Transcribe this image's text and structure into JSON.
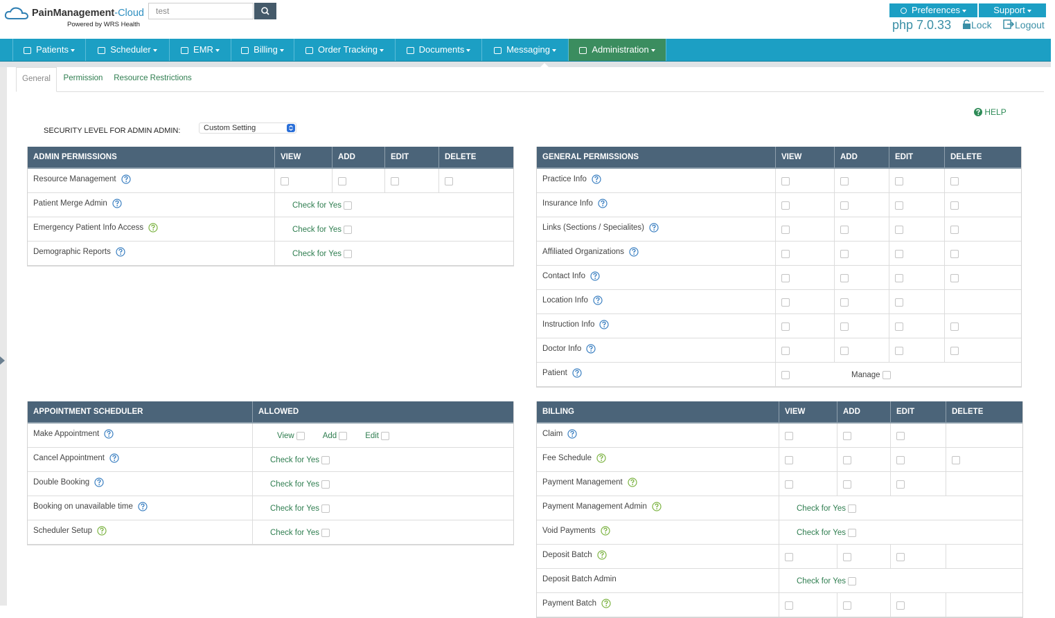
{
  "header": {
    "brand": "PainManagement",
    "brand_suffix": "-Cloud",
    "powered_by": "Powered by WRS Health",
    "search": "test",
    "preferences": "Preferences",
    "support": "Support",
    "php_version": "php 7.0.33",
    "lock": "Lock",
    "logout": "Logout"
  },
  "nav": {
    "items": [
      "Patients",
      "Scheduler",
      "EMR",
      "Billing",
      "Order Tracking",
      "Documents",
      "Messaging",
      "Administration"
    ],
    "active": 7
  },
  "tabs": {
    "items": [
      "General",
      "Permission",
      "Resource Restrictions"
    ],
    "active": 0
  },
  "help": "HELP",
  "security": {
    "label": "SECURITY LEVEL FOR ADMIN ADMIN:",
    "value": "Custom Setting"
  },
  "panels": [
    {
      "headers": [
        "ADMIN PERMISSIONS",
        "VIEW",
        "ADD",
        "EDIT",
        "DELETE"
      ],
      "rows": [
        {
          "label": "Resource Management",
          "help": "blue",
          "boxes": [
            true,
            true,
            true,
            true
          ]
        },
        {
          "label": "Patient Merge Admin",
          "help": "blue",
          "check": "Check for Yes"
        },
        {
          "label": "Emergency Patient Info Access",
          "help": "green",
          "check": "Check for Yes"
        },
        {
          "label": "Demographic Reports",
          "help": "blue",
          "check": "Check for Yes"
        }
      ]
    },
    {
      "headers": [
        "GENERAL PERMISSIONS",
        "VIEW",
        "ADD",
        "EDIT",
        "DELETE"
      ],
      "rows": [
        {
          "label": "Practice Info",
          "help": "blue",
          "boxes": [
            true,
            true,
            true,
            true
          ]
        },
        {
          "label": "Insurance Info",
          "help": "blue",
          "boxes": [
            true,
            true,
            true,
            true
          ]
        },
        {
          "label": "Links (Sections / Specialites)",
          "help": "blue",
          "boxes": [
            true,
            true,
            true,
            true
          ]
        },
        {
          "label": "Affiliated Organizations",
          "help": "blue",
          "boxes": [
            true,
            true,
            true,
            true
          ]
        },
        {
          "label": "Contact Info",
          "help": "blue",
          "boxes": [
            true,
            true,
            true,
            true
          ]
        },
        {
          "label": "Location Info",
          "help": "blue",
          "boxes": [
            true,
            true,
            true,
            false
          ]
        },
        {
          "label": "Instruction Info",
          "help": "blue",
          "boxes": [
            true,
            true,
            true,
            true
          ]
        },
        {
          "label": "Doctor Info",
          "help": "blue",
          "boxes": [
            true,
            true,
            true,
            true
          ]
        },
        {
          "label": "Patient",
          "help": "blue",
          "boxes": [
            true
          ],
          "manage": "Manage"
        }
      ]
    },
    {
      "headers": [
        "APPOINTMENT SCHEDULER",
        "ALLOWED"
      ],
      "rows": [
        {
          "label": "Make Appointment",
          "help": "blue",
          "options": [
            "View",
            "Add",
            "Edit"
          ]
        },
        {
          "label": "Cancel Appointment",
          "help": "blue",
          "check": "Check for Yes"
        },
        {
          "label": "Double Booking",
          "help": "blue",
          "check": "Check for Yes"
        },
        {
          "label": "Booking on unavailable time",
          "help": "blue",
          "check": "Check for Yes"
        },
        {
          "label": "Scheduler Setup",
          "help": "green",
          "check": "Check for Yes"
        }
      ]
    },
    {
      "headers": [
        "BILLING",
        "VIEW",
        "ADD",
        "EDIT",
        "DELETE"
      ],
      "rows": [
        {
          "label": "Claim",
          "help": "blue",
          "boxes": [
            true,
            true,
            true,
            false
          ]
        },
        {
          "label": "Fee Schedule",
          "help": "green",
          "boxes": [
            true,
            true,
            true,
            true
          ]
        },
        {
          "label": "Payment Management",
          "help": "green",
          "boxes": [
            true,
            true,
            true,
            false
          ]
        },
        {
          "label": "Payment Management Admin",
          "help": "green",
          "check": "Check for Yes"
        },
        {
          "label": "Void Payments",
          "help": "green",
          "check": "Check for Yes"
        },
        {
          "label": "Deposit Batch",
          "help": "green",
          "boxes": [
            true,
            true,
            true,
            false
          ]
        },
        {
          "label": "Deposit Batch Admin",
          "check": "Check for Yes"
        },
        {
          "label": "Payment Batch",
          "help": "green",
          "boxes": [
            true,
            true,
            true,
            false
          ]
        }
      ]
    }
  ]
}
